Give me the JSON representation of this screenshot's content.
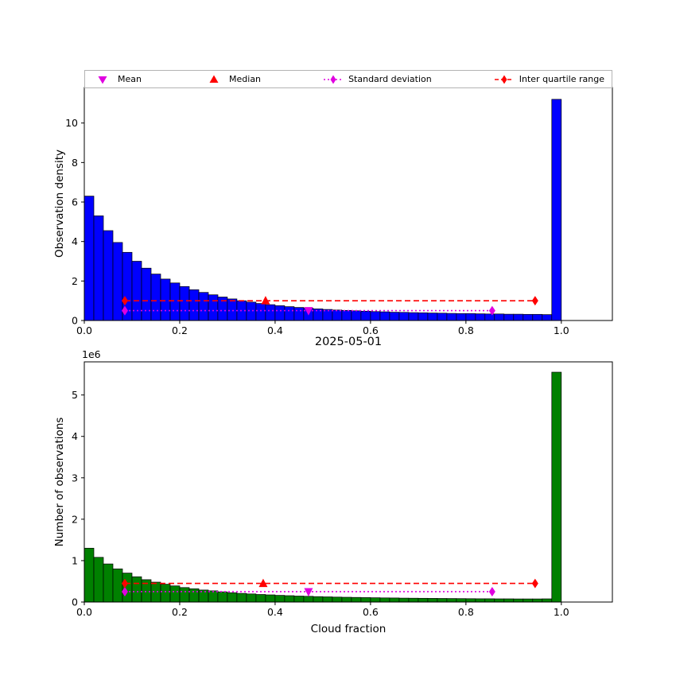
{
  "legend": {
    "position": "top-outside",
    "items": [
      {
        "id": "mean",
        "label": "Mean",
        "color": "#e000e0",
        "marker": "triangle-down",
        "line": "none"
      },
      {
        "id": "median",
        "label": "Median",
        "color": "#ff0000",
        "marker": "triangle-up",
        "line": "none"
      },
      {
        "id": "std",
        "label": "Standard deviation",
        "color": "#e000e0",
        "marker": "diamond",
        "line": "dotted"
      },
      {
        "id": "iqr",
        "label": "Inter quartile range",
        "color": "#ff0000",
        "marker": "diamond",
        "line": "dashed"
      }
    ]
  },
  "chart_data": [
    {
      "type": "bar",
      "name": "observation-density-histogram",
      "ylabel": "Observation density",
      "bar_color": "#0000ff",
      "edge_color": "#000000",
      "grid": false,
      "bin_start": 0.0,
      "bin_width": 0.02,
      "values": [
        6.3,
        5.3,
        4.55,
        3.95,
        3.45,
        3.0,
        2.65,
        2.35,
        2.1,
        1.9,
        1.72,
        1.56,
        1.42,
        1.3,
        1.19,
        1.09,
        1.0,
        0.93,
        0.86,
        0.8,
        0.75,
        0.7,
        0.66,
        0.62,
        0.59,
        0.56,
        0.53,
        0.51,
        0.49,
        0.47,
        0.45,
        0.44,
        0.42,
        0.41,
        0.4,
        0.39,
        0.38,
        0.37,
        0.36,
        0.35,
        0.35,
        0.34,
        0.33,
        0.33,
        0.32,
        0.32,
        0.31,
        0.31,
        0.3,
        11.2
      ],
      "xlim": [
        0,
        1.107
      ],
      "ylim": [
        0,
        11.8
      ],
      "xticks": [
        0.0,
        0.2,
        0.4,
        0.6,
        0.8,
        1.0
      ],
      "xtick_labels": [
        "0.0",
        "0.2",
        "0.4",
        "0.6",
        "0.8",
        "1.0"
      ],
      "yticks": [
        0,
        2,
        4,
        6,
        8,
        10
      ],
      "ytick_labels": [
        "0",
        "2",
        "4",
        "6",
        "8",
        "10"
      ],
      "markers": {
        "mean": {
          "x": 0.47,
          "y": 0.5,
          "color": "#e000e0"
        },
        "median": {
          "x": 0.38,
          "y": 1.0,
          "color": "#ff0000"
        },
        "std": {
          "x1": 0.085,
          "x2": 0.855,
          "y": 0.5,
          "color": "#e000e0",
          "style": "dotted"
        },
        "iqr": {
          "x1": 0.085,
          "x2": 0.945,
          "y": 1.0,
          "color": "#ff0000",
          "style": "dashed"
        }
      }
    },
    {
      "type": "bar",
      "name": "observation-count-histogram",
      "title": "2025-05-01",
      "xlabel": "Cloud fraction",
      "ylabel": "Number of observations",
      "scale_label": "1e6",
      "bar_color": "#008000",
      "edge_color": "#000000",
      "grid": false,
      "bin_start": 0.0,
      "bin_width": 0.02,
      "values": [
        1.3,
        1.08,
        0.92,
        0.8,
        0.7,
        0.61,
        0.54,
        0.48,
        0.43,
        0.39,
        0.35,
        0.32,
        0.29,
        0.27,
        0.245,
        0.225,
        0.21,
        0.195,
        0.183,
        0.172,
        0.162,
        0.153,
        0.145,
        0.138,
        0.131,
        0.125,
        0.12,
        0.115,
        0.111,
        0.107,
        0.103,
        0.1,
        0.097,
        0.094,
        0.092,
        0.09,
        0.088,
        0.086,
        0.084,
        0.082,
        0.081,
        0.079,
        0.078,
        0.077,
        0.076,
        0.075,
        0.074,
        0.075,
        0.077,
        5.55
      ],
      "xlim": [
        0,
        1.107
      ],
      "ylim": [
        0,
        5.8
      ],
      "xticks": [
        0.0,
        0.2,
        0.4,
        0.6,
        0.8,
        1.0
      ],
      "xtick_labels": [
        "0.0",
        "0.2",
        "0.4",
        "0.6",
        "0.8",
        "1.0"
      ],
      "yticks": [
        0,
        1,
        2,
        3,
        4,
        5
      ],
      "ytick_labels": [
        "0",
        "1",
        "2",
        "3",
        "4",
        "5"
      ],
      "markers": {
        "mean": {
          "x": 0.47,
          "y": 0.25,
          "color": "#e000e0"
        },
        "median": {
          "x": 0.375,
          "y": 0.45,
          "color": "#ff0000"
        },
        "std": {
          "x1": 0.085,
          "x2": 0.855,
          "y": 0.25,
          "color": "#e000e0",
          "style": "dotted"
        },
        "iqr": {
          "x1": 0.085,
          "x2": 0.945,
          "y": 0.45,
          "color": "#ff0000",
          "style": "dashed"
        }
      }
    }
  ]
}
